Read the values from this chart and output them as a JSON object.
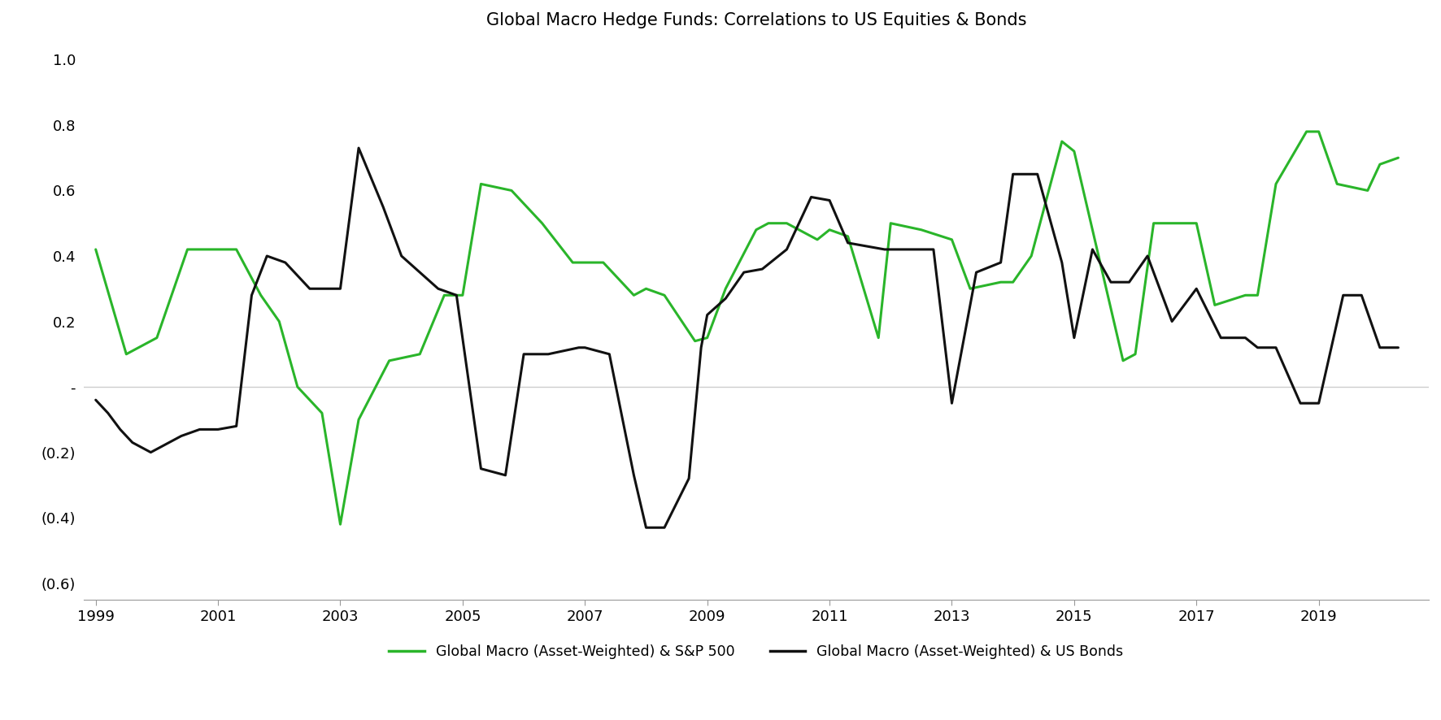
{
  "title": "Global Macro Hedge Funds: Correlations to US Equities & Bonds",
  "xlim": [
    1998.8,
    2020.8
  ],
  "ylim": [
    -0.65,
    1.05
  ],
  "yticks": [
    1.0,
    0.8,
    0.6,
    0.4,
    0.2,
    0.0,
    -0.2,
    -0.4,
    -0.6
  ],
  "ytick_labels": [
    "1.0",
    "0.8",
    "0.6",
    "0.4",
    "0.2",
    "-",
    "(0.2)",
    "(0.4)",
    "(0.6)"
  ],
  "xticks": [
    1999,
    2001,
    2003,
    2005,
    2007,
    2009,
    2011,
    2013,
    2015,
    2017,
    2019
  ],
  "legend_labels": [
    "Global Macro (Asset-Weighted) & S&P 500",
    "Global Macro (Asset-Weighted) & US Bonds"
  ],
  "green_color": "#2ab52a",
  "black_color": "#111111",
  "grid_color": "#cccccc",
  "sp500_x": [
    1999.0,
    1999.5,
    2000.0,
    2000.5,
    2001.0,
    2001.3,
    2001.7,
    2002.0,
    2002.3,
    2002.7,
    2003.0,
    2003.3,
    2003.8,
    2004.3,
    2004.7,
    2005.0,
    2005.3,
    2005.8,
    2006.3,
    2006.8,
    2007.0,
    2007.3,
    2007.8,
    2008.0,
    2008.3,
    2008.8,
    2009.0,
    2009.3,
    2009.8,
    2010.0,
    2010.3,
    2010.8,
    2011.0,
    2011.3,
    2011.8,
    2012.0,
    2012.5,
    2013.0,
    2013.3,
    2013.8,
    2014.0,
    2014.3,
    2014.8,
    2015.0,
    2015.3,
    2015.8,
    2016.0,
    2016.3,
    2016.8,
    2017.0,
    2017.3,
    2017.8,
    2018.0,
    2018.3,
    2018.8,
    2019.0,
    2019.3,
    2019.8,
    2020.0,
    2020.3
  ],
  "sp500_y": [
    0.42,
    0.1,
    0.15,
    0.42,
    0.42,
    0.42,
    0.28,
    0.2,
    0.0,
    -0.08,
    -0.42,
    -0.1,
    0.08,
    0.1,
    0.28,
    0.28,
    0.62,
    0.6,
    0.5,
    0.38,
    0.38,
    0.38,
    0.28,
    0.3,
    0.28,
    0.14,
    0.15,
    0.3,
    0.48,
    0.5,
    0.5,
    0.45,
    0.48,
    0.46,
    0.15,
    0.5,
    0.48,
    0.45,
    0.3,
    0.32,
    0.32,
    0.4,
    0.75,
    0.72,
    0.48,
    0.08,
    0.1,
    0.5,
    0.5,
    0.5,
    0.25,
    0.28,
    0.28,
    0.62,
    0.78,
    0.78,
    0.62,
    0.6,
    0.68,
    0.7
  ],
  "bonds_x": [
    1999.0,
    1999.2,
    1999.4,
    1999.6,
    1999.9,
    2000.1,
    2000.4,
    2000.7,
    2001.0,
    2001.3,
    2001.55,
    2001.8,
    2002.1,
    2002.5,
    2002.8,
    2003.0,
    2003.3,
    2003.7,
    2004.0,
    2004.3,
    2004.6,
    2004.9,
    2005.3,
    2005.7,
    2006.0,
    2006.4,
    2006.9,
    2007.0,
    2007.4,
    2007.8,
    2008.0,
    2008.3,
    2008.7,
    2008.9,
    2009.0,
    2009.3,
    2009.6,
    2009.9,
    2010.3,
    2010.7,
    2011.0,
    2011.3,
    2011.6,
    2011.9,
    2012.3,
    2012.7,
    2013.0,
    2013.4,
    2013.8,
    2014.0,
    2014.4,
    2014.8,
    2015.0,
    2015.3,
    2015.6,
    2015.9,
    2016.2,
    2016.6,
    2017.0,
    2017.4,
    2017.8,
    2018.0,
    2018.3,
    2018.7,
    2019.0,
    2019.4,
    2019.7,
    2020.0,
    2020.3
  ],
  "bonds_y": [
    -0.04,
    -0.08,
    -0.13,
    -0.17,
    -0.2,
    -0.18,
    -0.15,
    -0.13,
    -0.13,
    -0.12,
    0.28,
    0.4,
    0.38,
    0.3,
    0.3,
    0.3,
    0.73,
    0.55,
    0.4,
    0.35,
    0.3,
    0.28,
    -0.25,
    -0.27,
    0.1,
    0.1,
    0.12,
    0.12,
    0.1,
    -0.27,
    -0.43,
    -0.43,
    -0.28,
    0.12,
    0.22,
    0.27,
    0.35,
    0.36,
    0.42,
    0.58,
    0.57,
    0.44,
    0.43,
    0.42,
    0.42,
    0.42,
    -0.05,
    0.35,
    0.38,
    0.65,
    0.65,
    0.38,
    0.15,
    0.42,
    0.32,
    0.32,
    0.4,
    0.2,
    0.3,
    0.15,
    0.15,
    0.12,
    0.12,
    -0.05,
    -0.05,
    0.28,
    0.28,
    0.12,
    0.12
  ]
}
